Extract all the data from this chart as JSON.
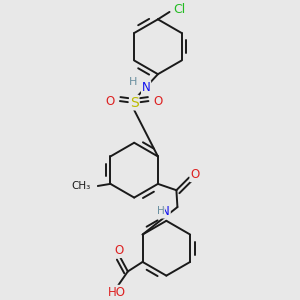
{
  "background_color": "#e8e8e8",
  "bond_color": "#1a1a1a",
  "bond_width": 1.4,
  "atom_colors": {
    "C": "#1a1a1a",
    "H": "#6a8fa0",
    "N": "#1010ee",
    "O": "#dd2222",
    "S": "#bbbb00",
    "Cl": "#22bb22"
  },
  "font_size": 8.5,
  "fig_size": [
    3.0,
    3.0
  ],
  "dpi": 100
}
